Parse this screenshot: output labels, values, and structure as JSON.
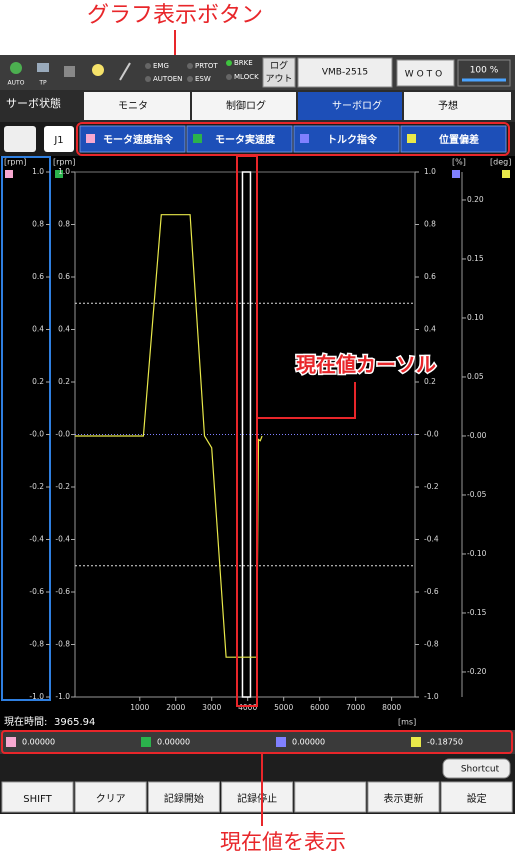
{
  "annotations": {
    "graph_buttons": "グラフ表示ボタン",
    "cursor": "現在値カーソル",
    "current_value": "現在値を表示"
  },
  "toolbar": {
    "icon_labels": [
      "AUTO",
      "TP"
    ],
    "status": [
      "EMG",
      "AUTOEN",
      "PRTOT",
      "ESW",
      "BRKE",
      "MLOCK"
    ],
    "logout": [
      "ログ",
      "アウト"
    ],
    "machine": "VMB-2515",
    "mode": "WOTO",
    "override": "100 %"
  },
  "nav": {
    "title": "サーボ状態",
    "tabs": [
      "モニタ",
      "制御ログ",
      "サーボログ",
      "予想"
    ]
  },
  "axis_button": "J1",
  "chart_data": {
    "type": "line",
    "x_label": "[ms]",
    "xlim": [
      -800,
      8650
    ],
    "xticks": [
      1000,
      2000,
      3000,
      4000,
      5000,
      6000,
      7000,
      8000
    ],
    "axes": [
      {
        "label": "[rpm]",
        "ylim": [
          -1,
          1
        ],
        "yticks": [
          {
            "value": 1,
            "label": "1.0"
          },
          {
            "value": 0.8,
            "label": "0.8"
          },
          {
            "value": 0.6,
            "label": "0.6"
          },
          {
            "value": 0.4,
            "label": "0.4"
          },
          {
            "value": 0.2,
            "label": "0.2"
          },
          {
            "value": 0,
            "label": "-0.0"
          },
          {
            "value": -0.2,
            "label": "-0.2"
          },
          {
            "value": -0.4,
            "label": "-0.4"
          },
          {
            "value": -0.6,
            "label": "-0.6"
          },
          {
            "value": -0.8,
            "label": "-0.8"
          },
          {
            "value": -1,
            "label": "-1.0"
          }
        ]
      },
      {
        "label": "[rpm]",
        "ylim": [
          -1,
          1
        ],
        "yticks": [
          {
            "value": 1,
            "label": "1.0"
          },
          {
            "value": 0.8,
            "label": "0.8"
          },
          {
            "value": 0.6,
            "label": "0.6"
          },
          {
            "value": 0.4,
            "label": "0.4"
          },
          {
            "value": 0.2,
            "label": "0.2"
          },
          {
            "value": 0,
            "label": "-0.0"
          },
          {
            "value": -0.2,
            "label": "-0.2"
          },
          {
            "value": -0.4,
            "label": "-0.4"
          },
          {
            "value": -0.6,
            "label": "-0.6"
          },
          {
            "value": -0.8,
            "label": "-0.8"
          },
          {
            "value": -1,
            "label": "-1.0"
          }
        ]
      },
      {
        "label": "[%]",
        "ylim": [
          -1,
          1
        ],
        "yticks": [
          {
            "value": 1,
            "label": "1.0"
          },
          {
            "value": 0.8,
            "label": "0.8"
          },
          {
            "value": 0.6,
            "label": "0.6"
          },
          {
            "value": 0.4,
            "label": "0.4"
          },
          {
            "value": 0.2,
            "label": "0.2"
          },
          {
            "value": 0,
            "label": "-0.0"
          },
          {
            "value": -0.2,
            "label": "-0.2"
          },
          {
            "value": -0.4,
            "label": "-0.4"
          },
          {
            "value": -0.6,
            "label": "-0.6"
          },
          {
            "value": -0.8,
            "label": "-0.8"
          },
          {
            "value": -1,
            "label": "-1.0"
          }
        ]
      },
      {
        "label": "[deg]",
        "ylim": [
          -0.2212,
          0.2237
        ],
        "yticks": [
          {
            "value": 0.2,
            "label": "0.20"
          },
          {
            "value": 0.15,
            "label": "0.15"
          },
          {
            "value": 0.1,
            "label": "0.10"
          },
          {
            "value": 0.05,
            "label": "0.05"
          },
          {
            "value": 0,
            "label": "-0.00"
          },
          {
            "value": -0.05,
            "label": "-0.05"
          },
          {
            "value": -0.1,
            "label": "-0.10"
          },
          {
            "value": -0.15,
            "label": "-0.15"
          },
          {
            "value": -0.2,
            "label": "-0.20"
          }
        ]
      }
    ],
    "reference_lines": [
      0.5,
      -0.5
    ],
    "series": [
      {
        "name": "モータ速度指令",
        "color": "#f7a8d0",
        "axis": 0,
        "x": [
          -800,
          8650
        ],
        "values": [
          0,
          0
        ]
      },
      {
        "name": "モータ実速度",
        "color": "#2bb24c",
        "axis": 1,
        "x": [
          -800,
          8650
        ],
        "values": [
          0,
          0
        ]
      },
      {
        "name": "トルク指令",
        "color": "#8080ff",
        "axis": 2,
        "x": [
          -800,
          8650
        ],
        "values": [
          0,
          0
        ]
      },
      {
        "name": "位置偏差",
        "color": "#e8e84a",
        "axis": 3,
        "x": [
          -800,
          1100,
          1600,
          2400,
          2800,
          3000,
          3400,
          4250,
          4300,
          4350,
          4400
        ],
        "values": [
          0,
          0,
          0.1875,
          0.1875,
          0,
          -0.01,
          -0.1875,
          -0.1875,
          -0.003,
          -0.004,
          0
        ]
      }
    ],
    "cursor_x": 3965.94
  },
  "current_time_label": "現在時間:",
  "current_values": [
    "0.00000",
    "0.00000",
    "0.00000",
    "-0.18750"
  ],
  "shortcut": "Shortcut",
  "buttons": [
    "SHIFT",
    "クリア",
    "記録開始",
    "記録停止",
    "表示更新",
    "設定"
  ]
}
